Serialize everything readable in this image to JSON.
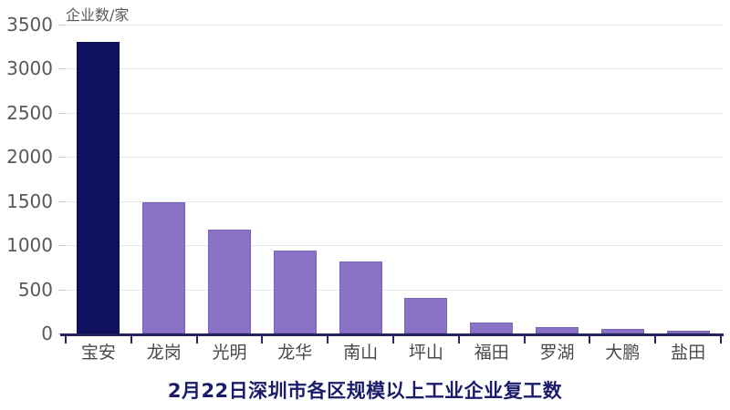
{
  "chart_data": {
    "type": "bar",
    "title": "2月22日深圳市各区规模以上工业企业复工数",
    "ylabel": "企业数/家",
    "xlabel": "",
    "categories": [
      "宝安",
      "龙岗",
      "光明",
      "龙华",
      "南山",
      "坪山",
      "福田",
      "罗湖",
      "大鹏",
      "盐田"
    ],
    "values": [
      3300,
      1490,
      1180,
      940,
      820,
      400,
      120,
      75,
      50,
      35
    ],
    "ylim": [
      0,
      3500
    ],
    "yticks": [
      0,
      500,
      1000,
      1500,
      2000,
      2500,
      3000,
      3500
    ],
    "grid": "horizontal",
    "legend": "none",
    "highlight_index": 0,
    "colors": {
      "highlight_bar": "#10115f",
      "highlight_bar_border": "#0b0c4a",
      "bar": "#8a72c6",
      "bar_border": "#7a63b5",
      "axis": "#23235f",
      "gridline": "#e7e7e7",
      "ytick_mark": "#c9c9c9",
      "ytick_label": "#595959",
      "xtick_label": "#4a4a4a",
      "ylabel": "#595959",
      "title": "#1b1b6b",
      "background": "#ffffff"
    }
  }
}
